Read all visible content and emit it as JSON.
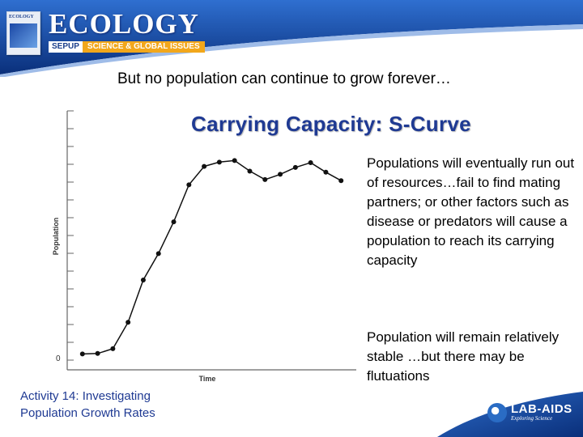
{
  "header": {
    "brand": "ECOLOGY",
    "tag_left": "SEPUP",
    "tag_right": "SCIENCE & GLOBAL ISSUES",
    "book_cover_text": "ECOLOGY",
    "colors": {
      "banner_top": "#1e56b8",
      "banner_bottom": "#0a2f7a",
      "tag_orange": "#f2a71b"
    }
  },
  "lead_text": "But no population can continue to grow forever…",
  "title": "Carrying Capacity: S-Curve",
  "paragraphs": [
    "Populations will eventually run out of resources…fail to find mating partners; or other factors such as disease or predators will cause a population to reach its carrying capacity",
    "Population will remain relatively stable …but there may be flutuations"
  ],
  "footer": {
    "line1": "Activity 14: Investigating",
    "line2": "Population Growth Rates"
  },
  "logo": {
    "text": "LAB-AIDS",
    "tagline": "Exploring Science"
  },
  "chart_data": {
    "type": "line",
    "ylabel": "Population",
    "xlabel": "Time",
    "y_tick_label": "0",
    "x": [
      1,
      2,
      3,
      4,
      5,
      6,
      7,
      8,
      9,
      10,
      11,
      12,
      13,
      14,
      15,
      16,
      17,
      18
    ],
    "values": [
      1.0,
      1.1,
      2.0,
      7.0,
      15.0,
      20.0,
      26.0,
      33.0,
      36.5,
      37.3,
      37.6,
      35.6,
      34.0,
      35.0,
      36.3,
      37.2,
      35.4,
      33.8
    ],
    "xlim": [
      0,
      19
    ],
    "ylim": [
      -2,
      47
    ],
    "y_tick_count": 15,
    "grid": false,
    "legend": "none",
    "line_color": "#111111"
  }
}
